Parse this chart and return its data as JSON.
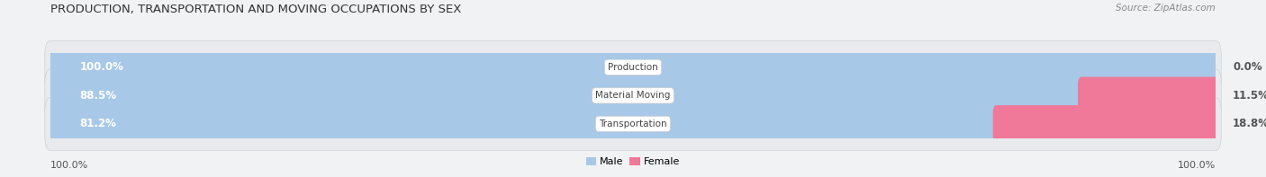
{
  "title": "PRODUCTION, TRANSPORTATION AND MOVING OCCUPATIONS BY SEX",
  "source": "Source: ZipAtlas.com",
  "categories": [
    "Production",
    "Material Moving",
    "Transportation"
  ],
  "male_values": [
    100.0,
    88.5,
    81.2
  ],
  "female_values": [
    0.0,
    11.5,
    18.8
  ],
  "male_color": "#a8c8e8",
  "female_color": "#f07898",
  "label_color_male": "#ffffff",
  "label_color_female": "#555555",
  "bar_bg_color": "#e2e6ea",
  "background_color": "#f0f2f4",
  "row_bg_color": "#e8eaed",
  "title_fontsize": 9.5,
  "source_fontsize": 7.5,
  "tick_fontsize": 8,
  "label_fontsize": 8.5,
  "category_fontsize": 7.5,
  "figsize": [
    14.06,
    1.97
  ],
  "dpi": 100,
  "axis_label_left": "100.0%",
  "axis_label_right": "100.0%"
}
